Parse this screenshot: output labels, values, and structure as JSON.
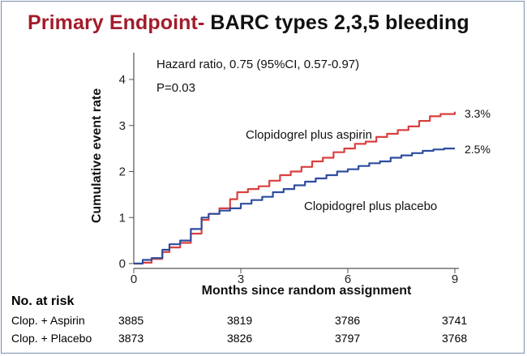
{
  "title": {
    "accent": "Primary Endpoint-",
    "rest": " BARC types 2,3,5 bleeding"
  },
  "annotations": {
    "hazard_ratio": "Hazard ratio, 0.75 (95%CI, 0.57-0.97)",
    "p_value": "P=0.03"
  },
  "chart_data": {
    "type": "line",
    "xlabel": "Months since random assignment",
    "ylabel": "Cumulative event rate",
    "xlim": [
      0,
      9
    ],
    "ylim": [
      0,
      4
    ],
    "x_ticks": [
      "0",
      "3",
      "6",
      "9"
    ],
    "y_ticks": [
      "0",
      "1",
      "2",
      "3",
      "4"
    ],
    "grid": false,
    "series": [
      {
        "name": "Clopidogrel plus aspirin",
        "color": "#d9403f",
        "end_label": "3.3%",
        "x": [
          0,
          0.25,
          0.5,
          0.8,
          1.0,
          1.3,
          1.6,
          1.9,
          2.1,
          2.4,
          2.7,
          2.9,
          3.2,
          3.5,
          3.8,
          4.1,
          4.4,
          4.7,
          5.0,
          5.3,
          5.6,
          5.9,
          6.2,
          6.5,
          6.8,
          7.1,
          7.4,
          7.7,
          8.0,
          8.3,
          8.6,
          9.0
        ],
        "values": [
          0,
          0.02,
          0.1,
          0.25,
          0.35,
          0.45,
          0.65,
          0.95,
          1.08,
          1.2,
          1.4,
          1.55,
          1.62,
          1.68,
          1.8,
          1.92,
          2.0,
          2.1,
          2.22,
          2.3,
          2.42,
          2.5,
          2.6,
          2.65,
          2.75,
          2.82,
          2.9,
          2.98,
          3.1,
          3.2,
          3.25,
          3.3
        ]
      },
      {
        "name": "Clopidogrel plus placebo",
        "color": "#2e4d9e",
        "end_label": "2.5%",
        "x": [
          0,
          0.25,
          0.5,
          0.8,
          1.0,
          1.3,
          1.6,
          1.9,
          2.1,
          2.4,
          2.7,
          3.0,
          3.3,
          3.6,
          3.9,
          4.2,
          4.5,
          4.8,
          5.1,
          5.4,
          5.7,
          6.0,
          6.3,
          6.6,
          6.9,
          7.2,
          7.5,
          7.8,
          8.1,
          8.4,
          8.7,
          9.0
        ],
        "values": [
          0,
          0.08,
          0.12,
          0.3,
          0.42,
          0.5,
          0.75,
          1.0,
          1.08,
          1.15,
          1.2,
          1.3,
          1.38,
          1.45,
          1.55,
          1.62,
          1.7,
          1.78,
          1.85,
          1.92,
          2.0,
          2.05,
          2.12,
          2.18,
          2.22,
          2.3,
          2.35,
          2.4,
          2.45,
          2.48,
          2.5,
          2.5
        ]
      }
    ]
  },
  "at_risk": {
    "title": "No. at risk",
    "rows": [
      {
        "label": "Clop. + Aspirin",
        "values": [
          "3885",
          "3819",
          "3786",
          "3741"
        ]
      },
      {
        "label": "Clop. + Placebo",
        "values": [
          "3873",
          "3826",
          "3797",
          "3768"
        ]
      }
    ]
  }
}
